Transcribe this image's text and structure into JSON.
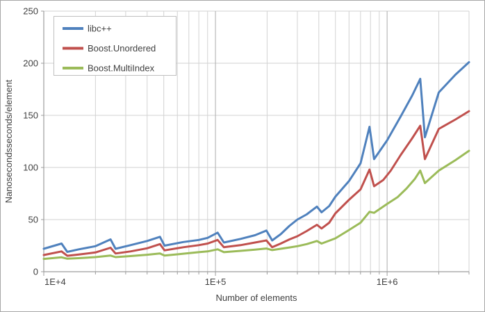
{
  "chart_data": {
    "type": "line",
    "title": "",
    "xlabel": "Number of elements",
    "ylabel": "Nanosecondsseconds/element",
    "x_scale": "log10",
    "x_min": 10000,
    "x_max": 3000000,
    "y_min": 0,
    "y_max": 250,
    "y_ticks": [
      0,
      50,
      100,
      150,
      200,
      250
    ],
    "x_major_ticks": [
      {
        "value": 10000,
        "label": "1E+4"
      },
      {
        "value": 100000,
        "label": "1E+5"
      },
      {
        "value": 1000000,
        "label": "1E+6"
      }
    ],
    "grid": {
      "x_minor_log_gridlines": true,
      "y_major_gridlines": true
    },
    "legend_position": "top-left",
    "series": [
      {
        "name": "libc++",
        "color": "#4f81bd",
        "points": [
          [
            10000,
            22
          ],
          [
            12700,
            27
          ],
          [
            13700,
            19
          ],
          [
            16000,
            21.5
          ],
          [
            20000,
            24.5
          ],
          [
            24500,
            31
          ],
          [
            26200,
            22
          ],
          [
            32000,
            25.5
          ],
          [
            40000,
            29.5
          ],
          [
            47500,
            33.5
          ],
          [
            50500,
            25
          ],
          [
            65000,
            28.5
          ],
          [
            80000,
            30.5
          ],
          [
            90000,
            32.5
          ],
          [
            103000,
            37.5
          ],
          [
            112000,
            28
          ],
          [
            140000,
            31.5
          ],
          [
            170000,
            35
          ],
          [
            198000,
            39.5
          ],
          [
            214000,
            30
          ],
          [
            240000,
            36
          ],
          [
            270000,
            44
          ],
          [
            300000,
            50
          ],
          [
            340000,
            55
          ],
          [
            390000,
            62.5
          ],
          [
            415000,
            57
          ],
          [
            460000,
            63
          ],
          [
            500000,
            72
          ],
          [
            600000,
            87
          ],
          [
            700000,
            104
          ],
          [
            790000,
            139
          ],
          [
            840000,
            108
          ],
          [
            1000000,
            126
          ],
          [
            1200000,
            149
          ],
          [
            1400000,
            169
          ],
          [
            1560000,
            185
          ],
          [
            1660000,
            129
          ],
          [
            2000000,
            172
          ],
          [
            2500000,
            189
          ],
          [
            3000000,
            201
          ]
        ]
      },
      {
        "name": "Boost.Unordered",
        "color": "#c0504d",
        "points": [
          [
            10000,
            16
          ],
          [
            12700,
            19.5
          ],
          [
            13700,
            15.3
          ],
          [
            16000,
            16.5
          ],
          [
            20000,
            18.5
          ],
          [
            24500,
            23
          ],
          [
            26200,
            17.5
          ],
          [
            32000,
            19.5
          ],
          [
            40000,
            22.5
          ],
          [
            47500,
            26.5
          ],
          [
            50500,
            20.5
          ],
          [
            65000,
            23.5
          ],
          [
            80000,
            25.5
          ],
          [
            90000,
            27
          ],
          [
            103000,
            30.5
          ],
          [
            112000,
            23.5
          ],
          [
            140000,
            25.5
          ],
          [
            170000,
            28
          ],
          [
            198000,
            30
          ],
          [
            214000,
            23.5
          ],
          [
            240000,
            27
          ],
          [
            270000,
            31
          ],
          [
            300000,
            34
          ],
          [
            340000,
            39
          ],
          [
            390000,
            45
          ],
          [
            415000,
            41.5
          ],
          [
            460000,
            47
          ],
          [
            500000,
            56
          ],
          [
            600000,
            69
          ],
          [
            700000,
            79
          ],
          [
            790000,
            98
          ],
          [
            840000,
            82
          ],
          [
            950000,
            88
          ],
          [
            1050000,
            97
          ],
          [
            1200000,
            112
          ],
          [
            1400000,
            128
          ],
          [
            1560000,
            140
          ],
          [
            1660000,
            108
          ],
          [
            2000000,
            137
          ],
          [
            2500000,
            146
          ],
          [
            3000000,
            154
          ]
        ]
      },
      {
        "name": "Boost.MultiIndex",
        "color": "#9bbb59",
        "points": [
          [
            10000,
            12.3
          ],
          [
            12700,
            13.8
          ],
          [
            13700,
            12.5
          ],
          [
            16000,
            13
          ],
          [
            20000,
            14
          ],
          [
            24500,
            15.5
          ],
          [
            26200,
            14
          ],
          [
            32000,
            15
          ],
          [
            40000,
            16.3
          ],
          [
            47500,
            17.5
          ],
          [
            50500,
            15.5
          ],
          [
            65000,
            17.3
          ],
          [
            80000,
            18.7
          ],
          [
            90000,
            19.5
          ],
          [
            103000,
            21.5
          ],
          [
            112000,
            18.7
          ],
          [
            140000,
            20
          ],
          [
            170000,
            21.2
          ],
          [
            198000,
            22.3
          ],
          [
            214000,
            20.7
          ],
          [
            240000,
            22
          ],
          [
            270000,
            23.3
          ],
          [
            300000,
            24.5
          ],
          [
            340000,
            26.5
          ],
          [
            390000,
            29.5
          ],
          [
            415000,
            27
          ],
          [
            500000,
            32
          ],
          [
            600000,
            40
          ],
          [
            700000,
            47
          ],
          [
            790000,
            57.5
          ],
          [
            840000,
            56.5
          ],
          [
            1000000,
            65
          ],
          [
            1150000,
            71.5
          ],
          [
            1300000,
            80
          ],
          [
            1450000,
            89
          ],
          [
            1560000,
            97
          ],
          [
            1660000,
            85
          ],
          [
            2000000,
            97
          ],
          [
            2500000,
            107
          ],
          [
            3000000,
            116
          ]
        ]
      }
    ]
  },
  "colors": {
    "series_blue": "#4f81bd",
    "series_red": "#c0504d",
    "series_green": "#9bbb59",
    "grid_minor": "#d2d2d2",
    "grid_major": "#ababab",
    "axis": "#9c9c9c",
    "text": "#3f3f3f",
    "legend_border": "#bfbfbf",
    "frame_border": "#a6a6a6",
    "background": "#ffffff"
  }
}
